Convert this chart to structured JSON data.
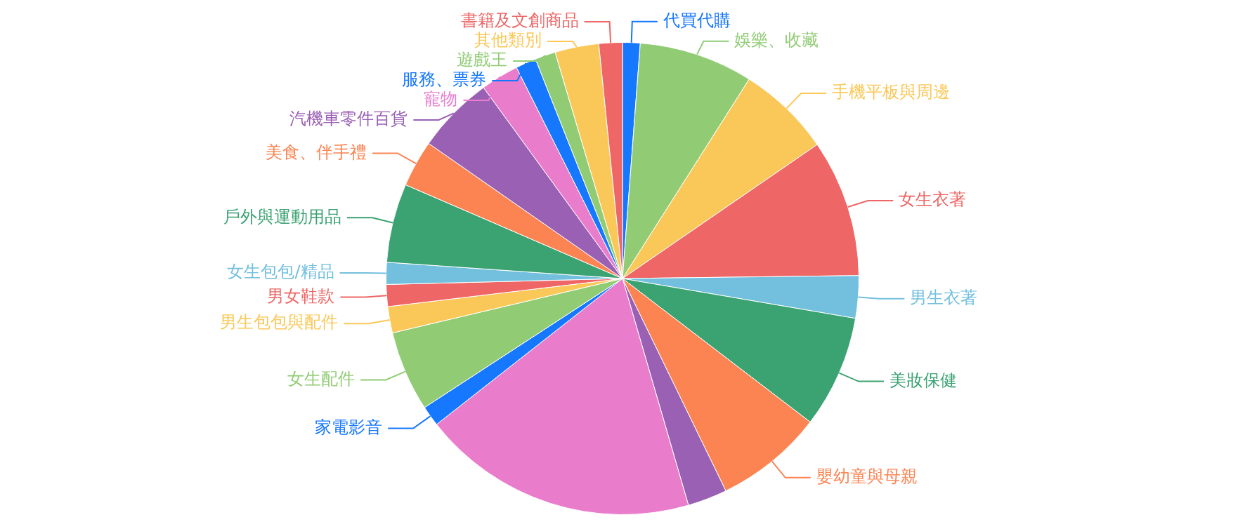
{
  "chart_data": {
    "type": "pie",
    "categories": [
      "代買代購",
      "娛樂、收藏",
      "手機平板與周邊",
      "女生衣著",
      "男生衣著",
      "美妝保健",
      "嬰幼童與母親",
      null,
      null,
      "家電影音",
      "女生配件",
      "男生包包與配件",
      "男女鞋款",
      "女生包包/精品",
      "戶外與運動用品",
      "美食、伴手禮",
      "汽機車零件百貨",
      "寵物",
      "服務、票券",
      "遊戲王",
      "其他類別",
      "書籍及文創商品"
    ],
    "values": [
      1.2,
      7.8,
      6.4,
      9.4,
      2.9,
      7.7,
      7.4,
      2.7,
      18.9,
      1.4,
      5.5,
      1.8,
      1.5,
      1.5,
      5.4,
      3.2,
      5.3,
      2.6,
      1.4,
      1.4,
      3.0,
      1.6
    ],
    "colors": [
      "#1677ff",
      "#91cc75",
      "#fac858",
      "#ee6666",
      "#73c0de",
      "#3ba272",
      "#fc8452",
      "#9a60b4",
      "#ea7ccc",
      "#1677ff",
      "#91cc75",
      "#fac858",
      "#ee6666",
      "#73c0de",
      "#3ba272",
      "#fc8452",
      "#9a60b4",
      "#ea7ccc",
      "#1677ff",
      "#91cc75",
      "#fac858",
      "#ee6666"
    ]
  }
}
